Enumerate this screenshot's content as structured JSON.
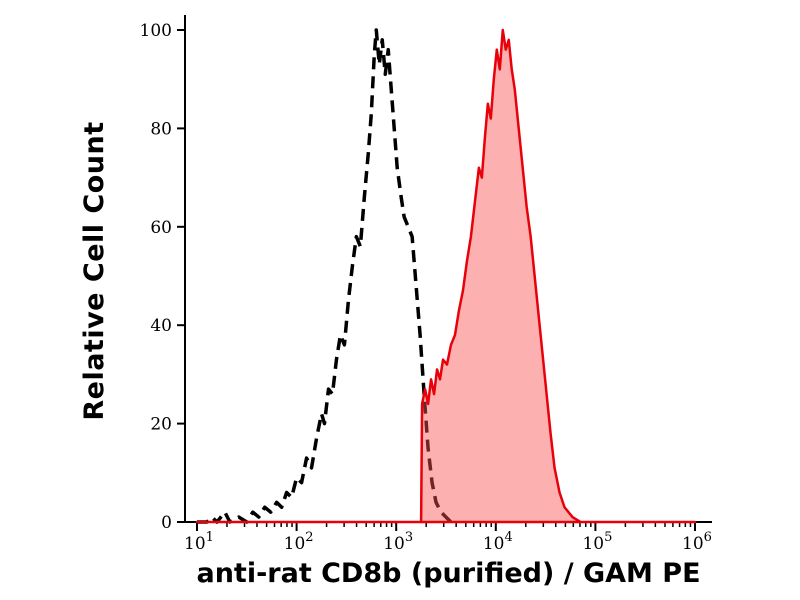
{
  "chart_data": {
    "type": "area",
    "title": "",
    "xlabel": "anti-rat CD8b (purified) / GAM PE",
    "ylabel": "Relative Cell Count",
    "x_scale": "log10",
    "xlim_log10": [
      1,
      6
    ],
    "ylim": [
      0,
      104
    ],
    "grid": false,
    "legend": "none",
    "x_tick_base": "10",
    "x_tick_exponents": [
      1,
      2,
      3,
      4,
      5,
      6
    ],
    "y_ticks": [
      0,
      20,
      40,
      60,
      80,
      100
    ],
    "colors": {
      "background": "#ffffff",
      "axis": "#000000",
      "control_line": "#000000",
      "stained_line": "#e8000b",
      "stained_fill": "#fa5050",
      "stained_fill_opacity": 0.45
    },
    "series": [
      {
        "name": "black-dashed-histogram",
        "line_style": "dashed",
        "fill": false,
        "color_key": "control_line",
        "points_log10x_y": [
          [
            1.0,
            0
          ],
          [
            1.1,
            0
          ],
          [
            1.15,
            1
          ],
          [
            1.2,
            0
          ],
          [
            1.28,
            2
          ],
          [
            1.33,
            0
          ],
          [
            1.42,
            1
          ],
          [
            1.5,
            0
          ],
          [
            1.56,
            2
          ],
          [
            1.62,
            1
          ],
          [
            1.68,
            3
          ],
          [
            1.74,
            2
          ],
          [
            1.8,
            4
          ],
          [
            1.85,
            3
          ],
          [
            1.9,
            6
          ],
          [
            1.95,
            5
          ],
          [
            2.0,
            9
          ],
          [
            2.05,
            8
          ],
          [
            2.1,
            13
          ],
          [
            2.15,
            11
          ],
          [
            2.2,
            17
          ],
          [
            2.25,
            22
          ],
          [
            2.28,
            20
          ],
          [
            2.32,
            27
          ],
          [
            2.36,
            26
          ],
          [
            2.4,
            33
          ],
          [
            2.44,
            38
          ],
          [
            2.48,
            36
          ],
          [
            2.52,
            45
          ],
          [
            2.56,
            52
          ],
          [
            2.6,
            58
          ],
          [
            2.64,
            56
          ],
          [
            2.68,
            66
          ],
          [
            2.72,
            75
          ],
          [
            2.75,
            83
          ],
          [
            2.78,
            95
          ],
          [
            2.8,
            100
          ],
          [
            2.83,
            93
          ],
          [
            2.86,
            98
          ],
          [
            2.89,
            91
          ],
          [
            2.92,
            96
          ],
          [
            2.95,
            88
          ],
          [
            2.98,
            80
          ],
          [
            3.01,
            72
          ],
          [
            3.05,
            66
          ],
          [
            3.08,
            62
          ],
          [
            3.12,
            60
          ],
          [
            3.16,
            58
          ],
          [
            3.2,
            48
          ],
          [
            3.24,
            38
          ],
          [
            3.28,
            26
          ],
          [
            3.32,
            15
          ],
          [
            3.36,
            8
          ],
          [
            3.4,
            4
          ],
          [
            3.45,
            2
          ],
          [
            3.5,
            1
          ],
          [
            3.55,
            0
          ]
        ]
      },
      {
        "name": "red-filled-histogram",
        "line_style": "solid",
        "fill": true,
        "color_key": "stained_line",
        "points_log10x_y": [
          [
            1.0,
            0
          ],
          [
            3.25,
            0
          ],
          [
            3.26,
            24
          ],
          [
            3.29,
            27
          ],
          [
            3.32,
            24
          ],
          [
            3.35,
            29
          ],
          [
            3.38,
            26
          ],
          [
            3.41,
            31
          ],
          [
            3.44,
            29
          ],
          [
            3.47,
            33
          ],
          [
            3.51,
            32
          ],
          [
            3.55,
            36
          ],
          [
            3.59,
            38
          ],
          [
            3.63,
            43
          ],
          [
            3.67,
            47
          ],
          [
            3.71,
            53
          ],
          [
            3.75,
            58
          ],
          [
            3.79,
            65
          ],
          [
            3.83,
            72
          ],
          [
            3.86,
            70
          ],
          [
            3.89,
            78
          ],
          [
            3.92,
            85
          ],
          [
            3.95,
            82
          ],
          [
            3.98,
            90
          ],
          [
            4.01,
            96
          ],
          [
            4.04,
            92
          ],
          [
            4.07,
            100
          ],
          [
            4.1,
            96
          ],
          [
            4.13,
            98
          ],
          [
            4.16,
            92
          ],
          [
            4.19,
            88
          ],
          [
            4.23,
            80
          ],
          [
            4.27,
            72
          ],
          [
            4.31,
            64
          ],
          [
            4.35,
            58
          ],
          [
            4.39,
            50
          ],
          [
            4.43,
            42
          ],
          [
            4.47,
            34
          ],
          [
            4.51,
            26
          ],
          [
            4.55,
            18
          ],
          [
            4.59,
            11
          ],
          [
            4.64,
            6
          ],
          [
            4.69,
            3
          ],
          [
            4.77,
            1
          ],
          [
            4.85,
            0
          ],
          [
            6.0,
            0
          ]
        ]
      }
    ]
  }
}
